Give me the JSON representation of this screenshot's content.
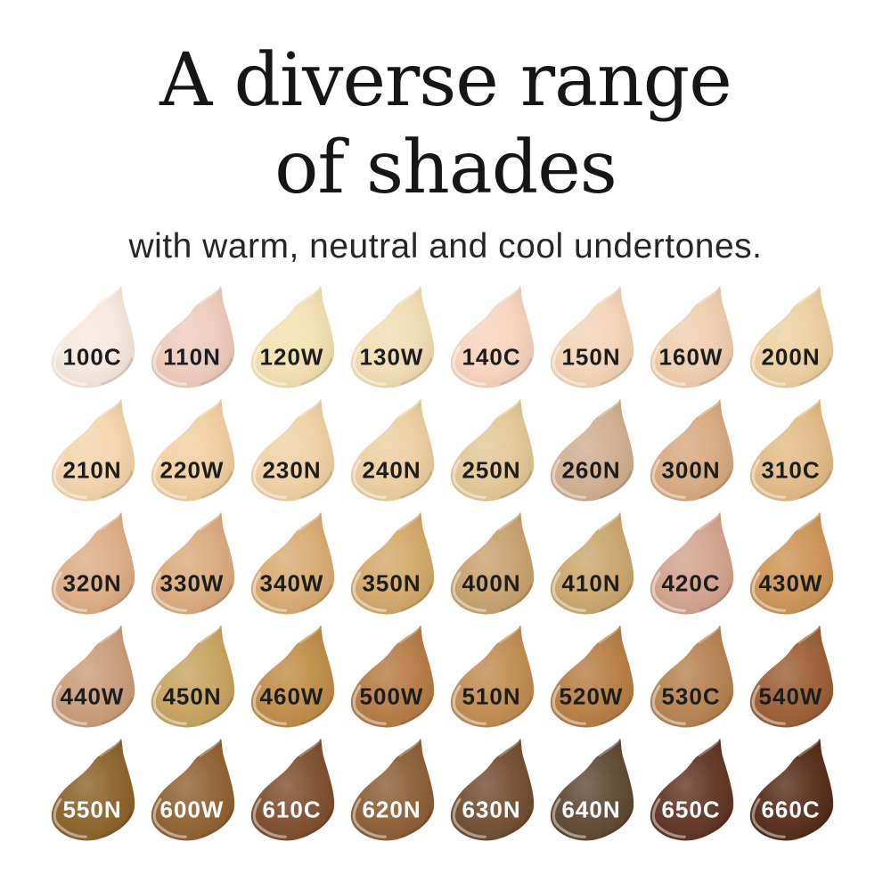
{
  "chart_data": {
    "type": "table",
    "title": "A diverse range of shades",
    "title_line1": "A diverse range",
    "title_line2": "of shades",
    "subtitle": "with warm, neutral and cool undertones.",
    "grid": {
      "rows": 5,
      "columns": 8
    },
    "label_color_dark": "#1d1d1d",
    "label_color_light": "#ffffff",
    "rows": [
      [
        {
          "code": "100C",
          "color": "#f6e8dc",
          "label_color": "#1d1d1d"
        },
        {
          "code": "110N",
          "color": "#edcbbb",
          "label_color": "#1d1d1d"
        },
        {
          "code": "120W",
          "color": "#f3e0b1",
          "label_color": "#1d1d1d"
        },
        {
          "code": "130W",
          "color": "#f1dcb3",
          "label_color": "#1d1d1d"
        },
        {
          "code": "140C",
          "color": "#f6d3bd",
          "label_color": "#1d1d1d"
        },
        {
          "code": "150N",
          "color": "#f3d3b6",
          "label_color": "#1d1d1d"
        },
        {
          "code": "160W",
          "color": "#efcdad",
          "label_color": "#1d1d1d"
        },
        {
          "code": "200N",
          "color": "#eccf9f",
          "label_color": "#1d1d1d"
        }
      ],
      [
        {
          "code": "210N",
          "color": "#f2d4aa",
          "label_color": "#1d1d1d"
        },
        {
          "code": "220W",
          "color": "#f0cf9f",
          "label_color": "#1d1d1d"
        },
        {
          "code": "230N",
          "color": "#eed1a4",
          "label_color": "#1d1d1d"
        },
        {
          "code": "240N",
          "color": "#ebce9f",
          "label_color": "#1d1d1d"
        },
        {
          "code": "250N",
          "color": "#e2c795",
          "label_color": "#1d1d1d"
        },
        {
          "code": "260N",
          "color": "#cfae8e",
          "label_color": "#1d1d1d"
        },
        {
          "code": "300N",
          "color": "#d7a87e",
          "label_color": "#1d1d1d"
        },
        {
          "code": "310C",
          "color": "#e2ba85",
          "label_color": "#1d1d1d"
        }
      ],
      [
        {
          "code": "320N",
          "color": "#dcac84",
          "label_color": "#1d1d1d"
        },
        {
          "code": "330W",
          "color": "#d9aa7b",
          "label_color": "#1d1d1d"
        },
        {
          "code": "340W",
          "color": "#d8aa70",
          "label_color": "#1d1d1d"
        },
        {
          "code": "350N",
          "color": "#d2a768",
          "label_color": "#1d1d1d"
        },
        {
          "code": "400N",
          "color": "#c7a06c",
          "label_color": "#1d1d1d"
        },
        {
          "code": "410N",
          "color": "#c9a66b",
          "label_color": "#1d1d1d"
        },
        {
          "code": "420C",
          "color": "#d2a28b",
          "label_color": "#1d1d1d"
        },
        {
          "code": "430W",
          "color": "#cc9354",
          "label_color": "#1d1d1d"
        }
      ],
      [
        {
          "code": "440W",
          "color": "#c99b77",
          "label_color": "#1d1d1d"
        },
        {
          "code": "450N",
          "color": "#c6a25e",
          "label_color": "#1d1d1d"
        },
        {
          "code": "460W",
          "color": "#bf8b45",
          "label_color": "#1d1d1d"
        },
        {
          "code": "500W",
          "color": "#b57942",
          "label_color": "#1d1d1d"
        },
        {
          "code": "510N",
          "color": "#bf8a4e",
          "label_color": "#1d1d1d"
        },
        {
          "code": "520W",
          "color": "#b67c42",
          "label_color": "#1d1d1d"
        },
        {
          "code": "530C",
          "color": "#b5804e",
          "label_color": "#1d1d1d"
        },
        {
          "code": "540W",
          "color": "#9a5c33",
          "label_color": "#1d1d1d"
        }
      ],
      [
        {
          "code": "550N",
          "color": "#8a6028",
          "label_color": "#ffffff"
        },
        {
          "code": "600W",
          "color": "#8f5f2f",
          "label_color": "#ffffff"
        },
        {
          "code": "610C",
          "color": "#7d4b2b",
          "label_color": "#ffffff"
        },
        {
          "code": "620N",
          "color": "#8a5c33",
          "label_color": "#ffffff"
        },
        {
          "code": "630N",
          "color": "#6f4b2e",
          "label_color": "#ffffff"
        },
        {
          "code": "640N",
          "color": "#5d4630",
          "label_color": "#ffffff"
        },
        {
          "code": "650C",
          "color": "#5e3220",
          "label_color": "#ffffff"
        },
        {
          "code": "660C",
          "color": "#532a16",
          "label_color": "#ffffff"
        }
      ]
    ]
  }
}
